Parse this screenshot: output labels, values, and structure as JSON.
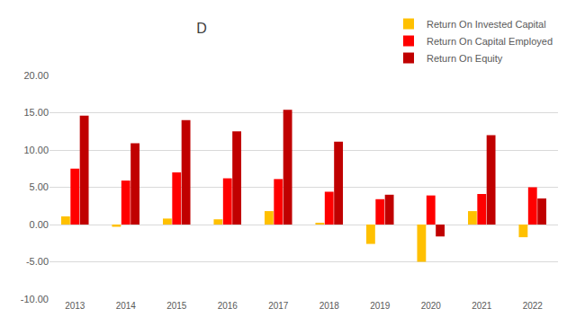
{
  "chart_data": {
    "type": "bar",
    "title": "D",
    "categories": [
      "2013",
      "2014",
      "2015",
      "2016",
      "2017",
      "2018",
      "2019",
      "2020",
      "2021",
      "2022"
    ],
    "series": [
      {
        "name": "Return On Invested Capital",
        "color": "#FFC000",
        "values": [
          1.1,
          -0.3,
          0.8,
          0.7,
          1.8,
          0.2,
          -2.6,
          -5.0,
          1.8,
          -1.7
        ]
      },
      {
        "name": "Return On Capital Employed",
        "color": "#FF0000",
        "values": [
          7.5,
          5.9,
          7.0,
          6.2,
          6.1,
          4.4,
          3.4,
          3.9,
          4.1,
          5.0
        ]
      },
      {
        "name": "Return On Equity",
        "color": "#C00000",
        "values": [
          14.6,
          10.9,
          14.0,
          12.5,
          15.4,
          11.1,
          4.0,
          -1.6,
          12.0,
          3.5
        ]
      }
    ],
    "ylim": [
      -10,
      20
    ],
    "yticks": [
      {
        "value": -10,
        "label": "-10.00"
      },
      {
        "value": -5,
        "label": "-5.00"
      },
      {
        "value": 0,
        "label": "0.00"
      },
      {
        "value": 5,
        "label": "5.00"
      },
      {
        "value": 10,
        "label": "10.00"
      },
      {
        "value": 15,
        "label": "15.00"
      },
      {
        "value": 20,
        "label": "20.00"
      }
    ],
    "grid": true,
    "legend": "upper right"
  }
}
